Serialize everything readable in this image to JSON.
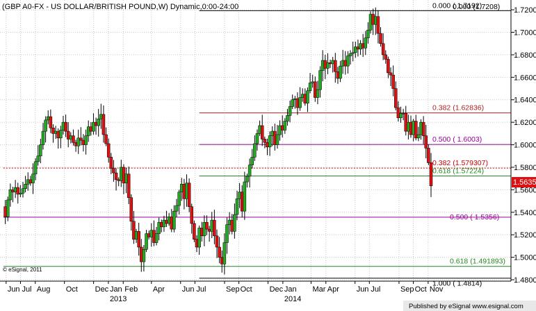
{
  "title": "(GBP A0-FX - US DOLLAR/BRITISH POUND,W) Dynamic,0:00-24:00",
  "copyright": "© eSignal, 2011",
  "publisher": "Published by eSignal www.esignal.com",
  "last_price": "1.5635",
  "colors": {
    "up": "#22aa22",
    "down": "#dd1111",
    "fib_black": "#000000",
    "fib_red": "#aa2222",
    "fib_purple": "#990099",
    "fib_green": "#228822",
    "dotted_red": "#cc0000"
  },
  "fib_levels": [
    {
      "label": "0.000 ( 1.7192)",
      "value": 1.7192,
      "color": "#000000",
      "x_start": "2013-07-10"
    },
    {
      "label": "0.382 (1.62836)",
      "value": 1.62836,
      "color": "#aa2222",
      "x_start": "2013-07-10"
    },
    {
      "label": "0.500 ( 1.6003)",
      "value": 1.6003,
      "color": "#990099",
      "x_start": "2013-07-10"
    },
    {
      "label": "0.382 (1.579307)",
      "value": 1.579307,
      "color": "#cc0000",
      "x_start": "2012-06-01",
      "dotted": true
    },
    {
      "label": "0.618 (1.57224)",
      "value": 1.57224,
      "color": "#228822",
      "x_start": "2013-07-10"
    },
    {
      "label": "0.500 ( 1.5356)",
      "value": 1.5356,
      "color": "#990099",
      "x_start": "2012-06-01"
    },
    {
      "label": "0.618 (1.491893)",
      "value": 1.491893,
      "color": "#228822",
      "x_start": "2012-06-01"
    },
    {
      "label": "1.000 ( 1.4814)",
      "value": 1.4814,
      "color": "#000000",
      "x_start": "2013-07-10"
    }
  ],
  "high_label_overlap": "0.000 (1.7208)",
  "chart_data": {
    "type": "candlestick",
    "title": "(GBP A0-FX - US DOLLAR/BRITISH POUND,W) Dynamic,0:00-24:00",
    "ylim": [
      1.48,
      1.725
    ],
    "y_ticks": [
      "1.7200",
      "1.7000",
      "1.6800",
      "1.6600",
      "1.6400",
      "1.6200",
      "1.6000",
      "1.5800",
      "1.5600",
      "1.5400",
      "1.5200",
      "1.5000",
      "1.4800"
    ],
    "x_ticks": [
      {
        "label": "Jun",
        "date": "2012-06-01"
      },
      {
        "label": "Jul",
        "date": "2012-07-01"
      },
      {
        "label": "Aug",
        "date": "2012-08-01"
      },
      {
        "label": "Oct",
        "date": "2012-10-01"
      },
      {
        "label": "Dec",
        "date": "2012-12-01"
      },
      {
        "label": "Jan",
        "date": "2013-01-01"
      },
      {
        "label": "Feb",
        "date": "2013-02-01"
      },
      {
        "label": "Apr",
        "date": "2013-04-01"
      },
      {
        "label": "Jun",
        "date": "2013-06-01"
      },
      {
        "label": "Jul",
        "date": "2013-07-01"
      },
      {
        "label": "Sep",
        "date": "2013-09-01"
      },
      {
        "label": "Oct",
        "date": "2013-10-01"
      },
      {
        "label": "Dec",
        "date": "2013-12-01"
      },
      {
        "label": "Jan",
        "date": "2014-01-01"
      },
      {
        "label": "Mar",
        "date": "2014-03-01"
      },
      {
        "label": "Apr",
        "date": "2014-04-01"
      },
      {
        "label": "Jun",
        "date": "2014-06-01"
      },
      {
        "label": "Jul",
        "date": "2014-07-01"
      },
      {
        "label": "Sep",
        "date": "2014-09-01"
      },
      {
        "label": "Oct",
        "date": "2014-10-01"
      },
      {
        "label": "Nov",
        "date": "2014-11-01"
      }
    ],
    "year_labels": [
      {
        "label": "2013",
        "date": "2013-01-01"
      },
      {
        "label": "2014",
        "date": "2014-01-01"
      }
    ],
    "close_path": [
      1.545,
      1.536,
      1.551,
      1.56,
      1.558,
      1.562,
      1.556,
      1.557,
      1.561,
      1.565,
      1.569,
      1.566,
      1.574,
      1.585,
      1.59,
      1.6,
      1.612,
      1.622,
      1.625,
      1.615,
      1.61,
      1.612,
      1.606,
      1.613,
      1.62,
      1.612,
      1.605,
      1.608,
      1.602,
      1.599,
      1.606,
      1.604,
      1.6,
      1.608,
      1.616,
      1.612,
      1.62,
      1.617,
      1.623,
      1.627,
      1.609,
      1.601,
      1.589,
      1.579,
      1.575,
      1.569,
      1.568,
      1.58,
      1.566,
      1.574,
      1.553,
      1.532,
      1.516,
      1.523,
      1.509,
      1.496,
      1.507,
      1.521,
      1.518,
      1.524,
      1.513,
      1.521,
      1.531,
      1.527,
      1.533,
      1.53,
      1.536,
      1.525,
      1.541,
      1.546,
      1.558,
      1.565,
      1.552,
      1.566,
      1.545,
      1.53,
      1.516,
      1.509,
      1.526,
      1.519,
      1.531,
      1.525,
      1.523,
      1.533,
      1.519,
      1.509,
      1.5,
      1.494,
      1.513,
      1.529,
      1.533,
      1.523,
      1.538,
      1.552,
      1.558,
      1.541,
      1.567,
      1.572,
      1.582,
      1.589,
      1.601,
      1.61,
      1.617,
      1.605,
      1.602,
      1.598,
      1.608,
      1.612,
      1.6,
      1.609,
      1.617,
      1.613,
      1.621,
      1.626,
      1.634,
      1.64,
      1.641,
      1.633,
      1.642,
      1.645,
      1.637,
      1.648,
      1.655,
      1.656,
      1.642,
      1.649,
      1.666,
      1.675,
      1.668,
      1.673,
      1.672,
      1.675,
      1.665,
      1.659,
      1.67,
      1.675,
      1.67,
      1.679,
      1.681,
      1.682,
      1.687,
      1.685,
      1.69,
      1.686,
      1.695,
      1.702,
      1.716,
      1.707,
      1.714,
      1.699,
      1.69,
      1.68,
      1.676,
      1.664,
      1.662,
      1.65,
      1.633,
      1.624,
      1.628,
      1.628,
      1.612,
      1.62,
      1.609,
      1.621,
      1.606,
      1.609,
      1.62,
      1.608,
      1.597,
      1.584,
      1.5635
    ],
    "date_start": "2012-05-25",
    "date_end": "2014-11-07"
  }
}
